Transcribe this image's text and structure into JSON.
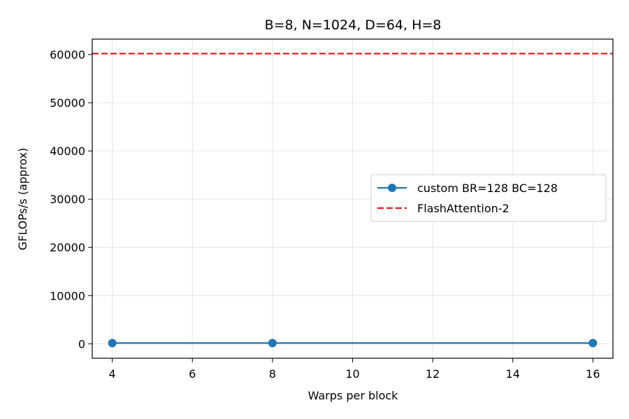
{
  "chart_data": {
    "type": "line",
    "title": "B=8, N=1024, D=64, H=8",
    "xlabel": "Warps per block",
    "ylabel": "GFLOPs/s (approx)",
    "xlim": [
      3.5,
      16.5
    ],
    "ylim": [
      -3000,
      63200
    ],
    "x_ticks": [
      4,
      6,
      8,
      10,
      12,
      14,
      16
    ],
    "y_ticks": [
      0,
      10000,
      20000,
      30000,
      40000,
      50000,
      60000
    ],
    "grid": true,
    "legend_position": "center-right",
    "series": [
      {
        "name": "custom BR=128 BC=128",
        "x": [
          4,
          8,
          16
        ],
        "y": [
          150,
          150,
          150
        ],
        "color": "#1f77b4",
        "style": "solid",
        "marker": "circle"
      }
    ],
    "reference_lines": [
      {
        "name": "FlashAttention-2",
        "y": 60200,
        "color": "#e31a1c",
        "style": "dashed"
      }
    ]
  }
}
